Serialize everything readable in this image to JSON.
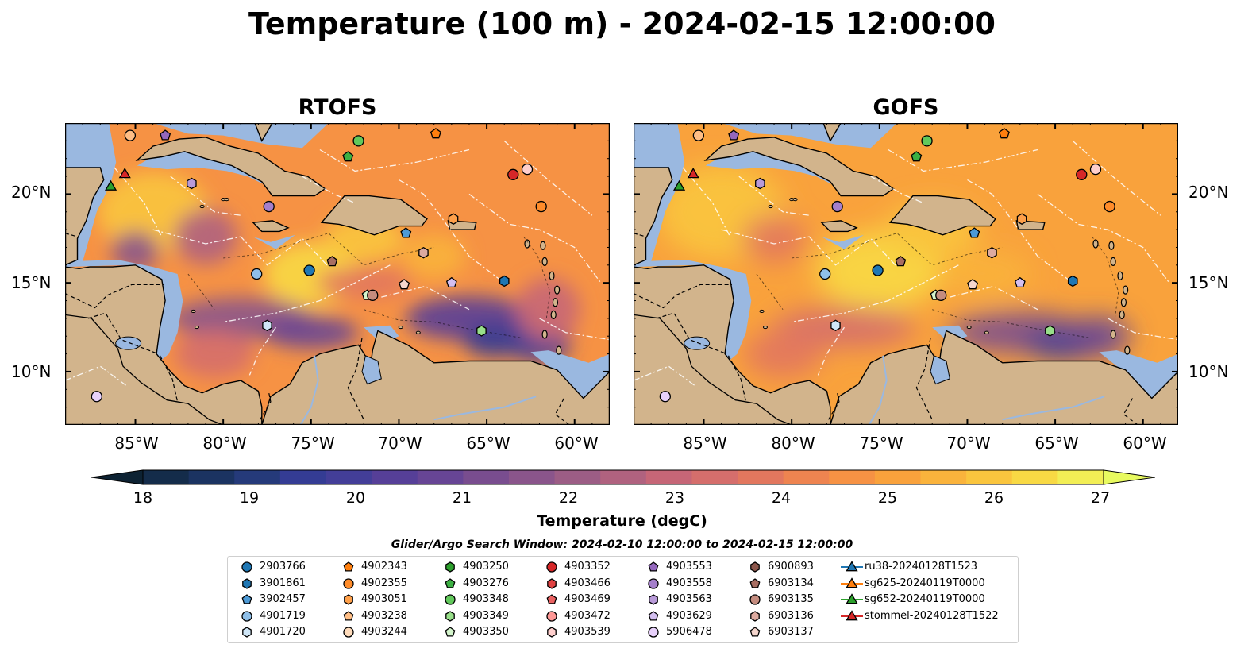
{
  "title": "Temperature (100 m) - 2024-02-15 12:00:00",
  "panels": [
    {
      "id": "rtofs",
      "title": "RTOFS"
    },
    {
      "id": "gofs",
      "title": "GOFS"
    }
  ],
  "map": {
    "lon_range": [
      -89,
      -58
    ],
    "lat_range": [
      7,
      24
    ],
    "lon_ticks": [
      "85°W",
      "80°W",
      "75°W",
      "70°W",
      "65°W",
      "60°W"
    ],
    "lat_ticks": [
      "20°N",
      "15°N",
      "10°N"
    ],
    "colors": {
      "land": "#d2b48c",
      "shelf": "#9ab8e0",
      "deep_west": "#0d2233",
      "coast": "#000000"
    }
  },
  "colorbar": {
    "label": "Temperature (degC)",
    "ticks": [
      "18",
      "19",
      "20",
      "21",
      "22",
      "23",
      "24",
      "25",
      "26",
      "27"
    ],
    "range": [
      18,
      27
    ],
    "extend": "both",
    "colors": [
      "#0d2233",
      "#142c4a",
      "#1b3361",
      "#253a7a",
      "#343c94",
      "#433e98",
      "#563f98",
      "#674595",
      "#794d8f",
      "#8a558b",
      "#9c5d85",
      "#b0627f",
      "#c66677",
      "#d56e6c",
      "#e2775e",
      "#ee8450",
      "#f69244",
      "#f9a23c",
      "#fab33c",
      "#fac53e",
      "#f8d944",
      "#f2ee55",
      "#e8fa60"
    ]
  },
  "search_window": "Glider/Argo Search Window: 2024-02-10 12:00:00 to 2024-02-15 12:00:00",
  "legend": [
    {
      "label": "2903766",
      "shape": "circle",
      "color": "#1f77b4"
    },
    {
      "label": "3901861",
      "shape": "hexagon",
      "color": "#1f77b4"
    },
    {
      "label": "3902457",
      "shape": "pentagon",
      "color": "#4d9ad6"
    },
    {
      "label": "4901719",
      "shape": "circle",
      "color": "#8fbfe8"
    },
    {
      "label": "4901720",
      "shape": "hexagon",
      "color": "#cfe6f7"
    },
    {
      "label": "4902343",
      "shape": "pentagon",
      "color": "#ff7f0e"
    },
    {
      "label": "4902355",
      "shape": "circle",
      "color": "#ff8c2a"
    },
    {
      "label": "4903051",
      "shape": "hexagon",
      "color": "#ffa04a"
    },
    {
      "label": "4903238",
      "shape": "pentagon",
      "color": "#ffbe85"
    },
    {
      "label": "4903244",
      "shape": "circle",
      "color": "#ffdcbc"
    },
    {
      "label": "4903250",
      "shape": "hexagon",
      "color": "#2ca02c"
    },
    {
      "label": "4903276",
      "shape": "pentagon",
      "color": "#3cb043"
    },
    {
      "label": "4903348",
      "shape": "circle",
      "color": "#62c95c"
    },
    {
      "label": "4903349",
      "shape": "hexagon",
      "color": "#98df8a"
    },
    {
      "label": "4903350",
      "shape": "pentagon",
      "color": "#d4f5cc"
    },
    {
      "label": "4903352",
      "shape": "circle",
      "color": "#d62728"
    },
    {
      "label": "4903466",
      "shape": "hexagon",
      "color": "#e04242"
    },
    {
      "label": "4903469",
      "shape": "pentagon",
      "color": "#ea6262"
    },
    {
      "label": "4903472",
      "shape": "circle",
      "color": "#ff9896"
    },
    {
      "label": "4903539",
      "shape": "hexagon",
      "color": "#ffcfcd"
    },
    {
      "label": "4903553",
      "shape": "pentagon",
      "color": "#9467bd"
    },
    {
      "label": "4903558",
      "shape": "circle",
      "color": "#a57fcb"
    },
    {
      "label": "4903563",
      "shape": "hexagon",
      "color": "#b89ad8"
    },
    {
      "label": "4903629",
      "shape": "pentagon",
      "color": "#d4bff0"
    },
    {
      "label": "5906478",
      "shape": "circle",
      "color": "#e8d1fb"
    },
    {
      "label": "6900893",
      "shape": "hexagon",
      "color": "#8c564b"
    },
    {
      "label": "6903134",
      "shape": "pentagon",
      "color": "#a86e62"
    },
    {
      "label": "6903135",
      "shape": "circle",
      "color": "#c48c7f"
    },
    {
      "label": "6903136",
      "shape": "hexagon",
      "color": "#dcaaa0"
    },
    {
      "label": "6903137",
      "shape": "pentagon",
      "color": "#f5d6cd"
    },
    {
      "label": "ru38-20240128T1523",
      "shape": "triangle-line",
      "color": "#1f77b4"
    },
    {
      "label": "sg625-20240119T0000",
      "shape": "triangle-line",
      "color": "#ff7f0e"
    },
    {
      "label": "sg652-20240119T0000",
      "shape": "triangle-line",
      "color": "#2ca02c"
    },
    {
      "label": "stommel-20240128T1522",
      "shape": "triangle-line",
      "color": "#d62728"
    }
  ],
  "markers": [
    {
      "lon": -85.3,
      "lat": 23.3,
      "shape": "circle",
      "color": "#ffbe85"
    },
    {
      "lon": -83.3,
      "lat": 23.3,
      "shape": "pentagon",
      "color": "#9467bd"
    },
    {
      "lon": -72.3,
      "lat": 23.0,
      "shape": "circle",
      "color": "#62c95c"
    },
    {
      "lon": -67.9,
      "lat": 23.4,
      "shape": "pentagon",
      "color": "#ff7f0e"
    },
    {
      "lon": -72.9,
      "lat": 22.1,
      "shape": "pentagon",
      "color": "#3cb043"
    },
    {
      "lon": -63.5,
      "lat": 21.1,
      "shape": "circle",
      "color": "#d62728"
    },
    {
      "lon": -62.7,
      "lat": 21.4,
      "shape": "circle",
      "color": "#ffcfcd"
    },
    {
      "lon": -81.8,
      "lat": 20.6,
      "shape": "hexagon",
      "color": "#b89ad8"
    },
    {
      "lon": -77.4,
      "lat": 19.3,
      "shape": "circle",
      "color": "#a57fcb"
    },
    {
      "lon": -61.9,
      "lat": 19.3,
      "shape": "circle",
      "color": "#ff8c2a"
    },
    {
      "lon": -66.9,
      "lat": 18.6,
      "shape": "hexagon",
      "color": "#ffa04a"
    },
    {
      "lon": -69.6,
      "lat": 17.8,
      "shape": "pentagon",
      "color": "#4d9ad6"
    },
    {
      "lon": -73.8,
      "lat": 16.2,
      "shape": "pentagon",
      "color": "#a86e62"
    },
    {
      "lon": -68.6,
      "lat": 16.7,
      "shape": "hexagon",
      "color": "#dcaaa0"
    },
    {
      "lon": -75.1,
      "lat": 15.7,
      "shape": "circle",
      "color": "#1f77b4"
    },
    {
      "lon": -78.1,
      "lat": 15.5,
      "shape": "circle",
      "color": "#8fbfe8"
    },
    {
      "lon": -69.7,
      "lat": 14.9,
      "shape": "pentagon",
      "color": "#f5d6cd"
    },
    {
      "lon": -67.0,
      "lat": 15.0,
      "shape": "pentagon",
      "color": "#d4bff0"
    },
    {
      "lon": -64.0,
      "lat": 15.1,
      "shape": "hexagon",
      "color": "#1f77b4"
    },
    {
      "lon": -71.8,
      "lat": 14.3,
      "shape": "pentagon",
      "color": "#d4f5cc"
    },
    {
      "lon": -71.5,
      "lat": 14.3,
      "shape": "circle",
      "color": "#c48c7f"
    },
    {
      "lon": -77.5,
      "lat": 12.6,
      "shape": "hexagon",
      "color": "#cfe6f7"
    },
    {
      "lon": -65.3,
      "lat": 12.3,
      "shape": "hexagon",
      "color": "#98df8a"
    },
    {
      "lon": -87.2,
      "lat": 8.6,
      "shape": "circle",
      "color": "#e8d1fb"
    },
    {
      "lon": -86.4,
      "lat": 20.4,
      "shape": "triangle",
      "color": "#2ca02c"
    },
    {
      "lon": -85.6,
      "lat": 21.1,
      "shape": "triangle",
      "color": "#d62728"
    }
  ]
}
